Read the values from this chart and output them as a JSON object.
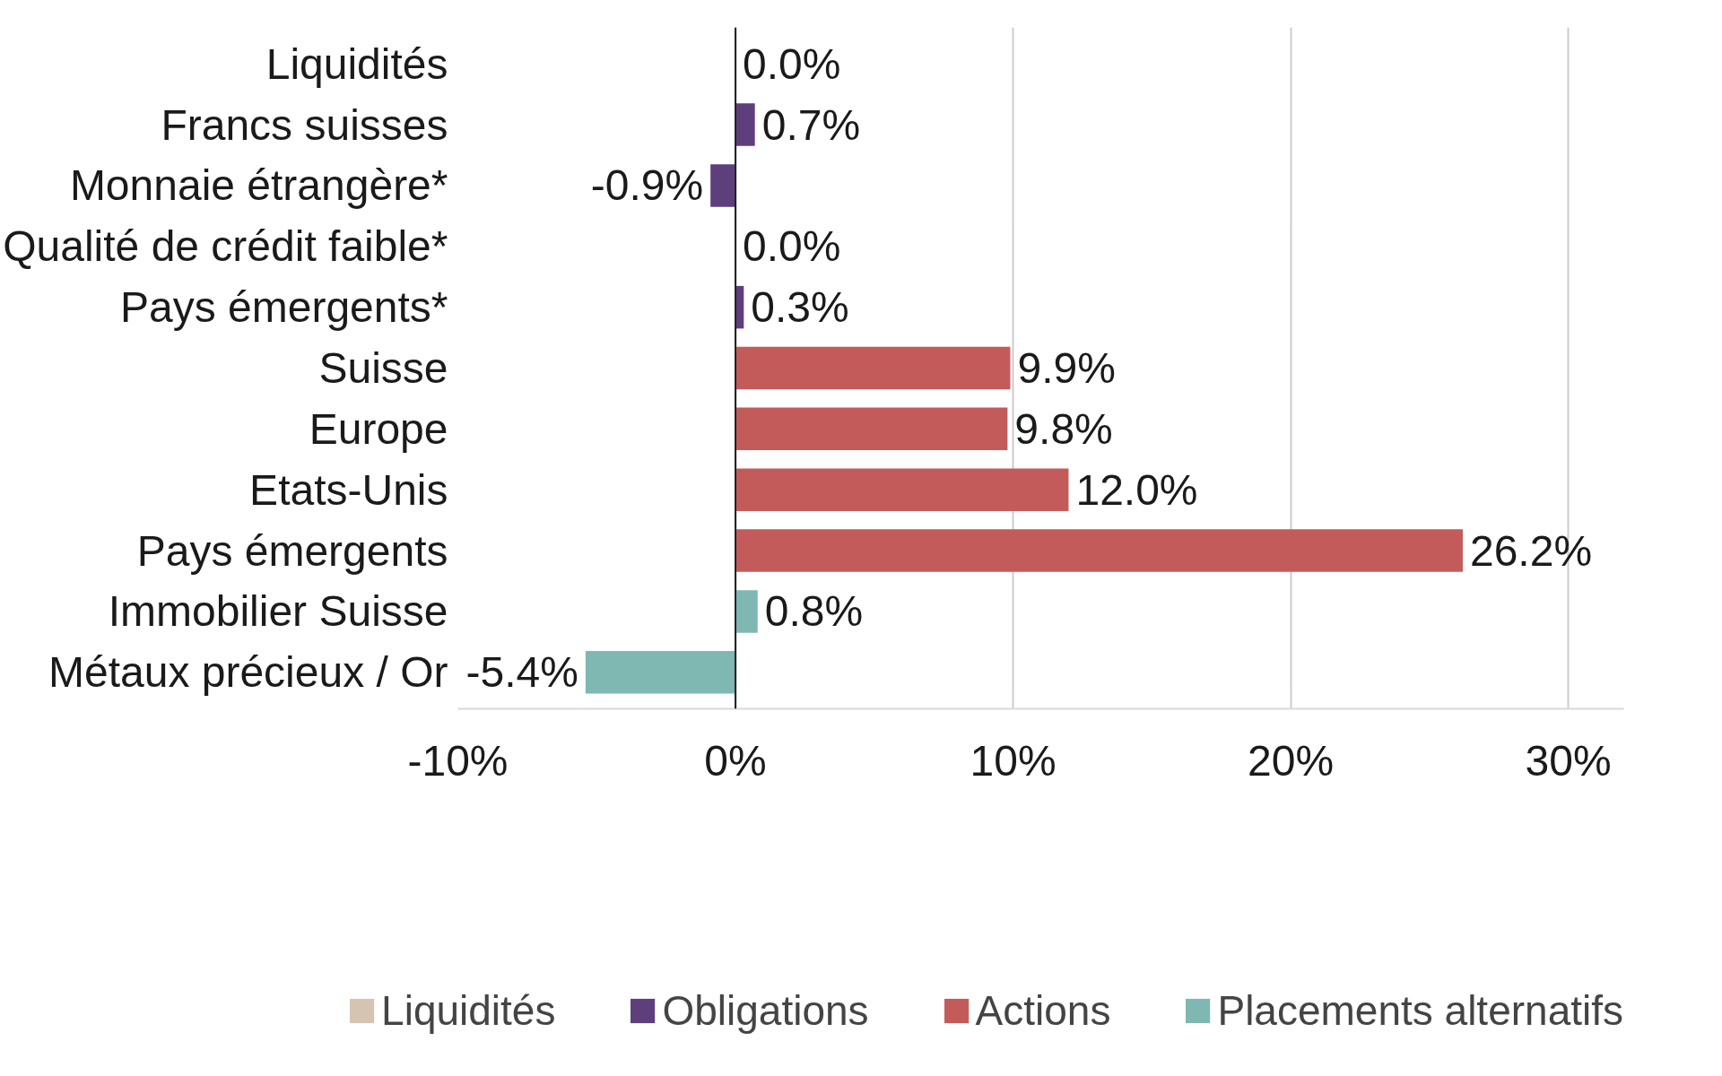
{
  "chart_data": {
    "type": "bar",
    "orientation": "horizontal",
    "categories": [
      "Liquidités",
      "Francs suisses",
      "Monnaie étrangère*",
      "Qualité de crédit faible*",
      "Pays émergents*",
      "Suisse",
      "Europe",
      "Etats-Unis",
      "Pays émergents",
      "Immobilier Suisse",
      "Métaux précieux / Or"
    ],
    "series": [
      {
        "name": "Liquidités",
        "color": "#d5c4b1",
        "values": [
          0.0,
          null,
          null,
          null,
          null,
          null,
          null,
          null,
          null,
          null,
          null
        ],
        "value_labels": [
          "0.0%",
          null,
          null,
          null,
          null,
          null,
          null,
          null,
          null,
          null,
          null
        ]
      },
      {
        "name": "Obligations",
        "color": "#5f3f7b",
        "values": [
          null,
          0.7,
          -0.9,
          0.0,
          0.3,
          null,
          null,
          null,
          null,
          null,
          null
        ],
        "value_labels": [
          null,
          "0.7%",
          "-0.9%",
          "0.0%",
          "0.3%",
          null,
          null,
          null,
          null,
          null,
          null
        ]
      },
      {
        "name": "Actions",
        "color": "#c45b5b",
        "values": [
          null,
          null,
          null,
          null,
          null,
          9.9,
          9.8,
          12.0,
          26.2,
          null,
          null
        ],
        "value_labels": [
          null,
          null,
          null,
          null,
          null,
          "9.9%",
          "9.8%",
          "12.0%",
          "26.2%",
          null,
          null
        ]
      },
      {
        "name": "Placements alternatifs",
        "color": "#7fb8b3",
        "values": [
          null,
          null,
          null,
          null,
          null,
          null,
          null,
          null,
          null,
          0.8,
          -5.4
        ],
        "value_labels": [
          null,
          null,
          null,
          null,
          null,
          null,
          null,
          null,
          null,
          "0.8%",
          "-5.4%"
        ]
      }
    ],
    "xlim": [
      -10,
      32
    ],
    "xticks": [
      {
        "value": -10,
        "label": "-10%"
      },
      {
        "value": 0,
        "label": "0%"
      },
      {
        "value": 10,
        "label": "10%"
      },
      {
        "value": 20,
        "label": "20%"
      },
      {
        "value": 30,
        "label": "30%"
      }
    ],
    "grid": "x",
    "legend": "bottom"
  }
}
